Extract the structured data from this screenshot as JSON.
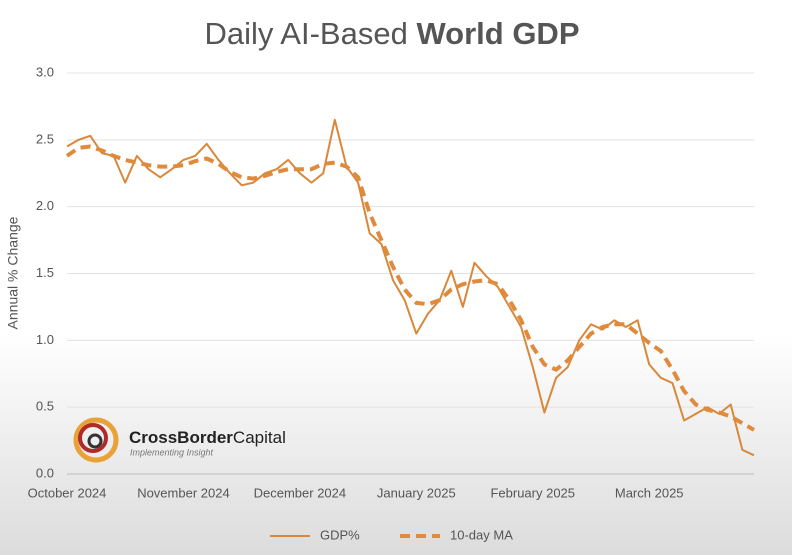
{
  "chart_data": {
    "type": "line",
    "title": {
      "regular": "Daily AI-Based",
      "bold": "World GDP"
    },
    "y_label": "Annual % Change",
    "logo": {
      "name": "CrossBorder",
      "name2": "Capital",
      "tagline": "Implementing Insight"
    },
    "categories": [
      "October 2024",
      null,
      null,
      null,
      null,
      null,
      null,
      null,
      null,
      null,
      "November 2024",
      null,
      null,
      null,
      null,
      null,
      null,
      null,
      null,
      null,
      "December 2024",
      null,
      null,
      null,
      null,
      null,
      null,
      null,
      null,
      null,
      "January 2025",
      null,
      null,
      null,
      null,
      null,
      null,
      null,
      null,
      null,
      "February 2025",
      null,
      null,
      null,
      null,
      null,
      null,
      null,
      null,
      null,
      "March 2025",
      null,
      null,
      null,
      null,
      null,
      null,
      null,
      null,
      null
    ],
    "series": [
      {
        "name": "GDP%",
        "color": "#d9883a",
        "dashed": false,
        "values": [
          2.45,
          2.5,
          2.53,
          2.4,
          2.38,
          2.18,
          2.38,
          2.28,
          2.22,
          2.28,
          2.35,
          2.38,
          2.47,
          2.35,
          2.25,
          2.16,
          2.18,
          2.25,
          2.28,
          2.35,
          2.25,
          2.18,
          2.25,
          2.65,
          2.3,
          2.18,
          1.8,
          1.72,
          1.45,
          1.3,
          1.05,
          1.2,
          1.3,
          1.52,
          1.25,
          1.58,
          1.48,
          1.4,
          1.25,
          1.1,
          0.8,
          0.46,
          0.72,
          0.8,
          1.0,
          1.12,
          1.08,
          1.15,
          1.1,
          1.15,
          0.82,
          0.72,
          0.68,
          0.4,
          0.45,
          0.5,
          0.45,
          0.52,
          0.18,
          0.14
        ]
      },
      {
        "name": "10-day MA",
        "color": "#e08a3c",
        "dashed": true,
        "values": [
          2.38,
          2.44,
          2.45,
          2.42,
          2.38,
          2.35,
          2.33,
          2.31,
          2.3,
          2.3,
          2.31,
          2.34,
          2.36,
          2.32,
          2.26,
          2.22,
          2.21,
          2.23,
          2.26,
          2.28,
          2.28,
          2.28,
          2.32,
          2.33,
          2.3,
          2.22,
          1.95,
          1.75,
          1.55,
          1.38,
          1.28,
          1.27,
          1.3,
          1.38,
          1.42,
          1.44,
          1.45,
          1.42,
          1.3,
          1.15,
          0.95,
          0.82,
          0.78,
          0.85,
          0.95,
          1.05,
          1.1,
          1.12,
          1.12,
          1.05,
          0.98,
          0.92,
          0.78,
          0.62,
          0.52,
          0.48,
          0.46,
          0.43,
          0.38,
          0.33
        ]
      }
    ],
    "ylim": [
      0,
      3
    ],
    "yticks": [
      {
        "value": 0,
        "label": "0.0"
      },
      {
        "value": 0.5,
        "label": "0.5"
      },
      {
        "value": 1,
        "label": "1.0"
      },
      {
        "value": 1.5,
        "label": "1.5"
      },
      {
        "value": 2,
        "label": "2.0"
      },
      {
        "value": 2.5,
        "label": "2.5"
      },
      {
        "value": 3,
        "label": "3.0"
      }
    ],
    "grid": true
  }
}
